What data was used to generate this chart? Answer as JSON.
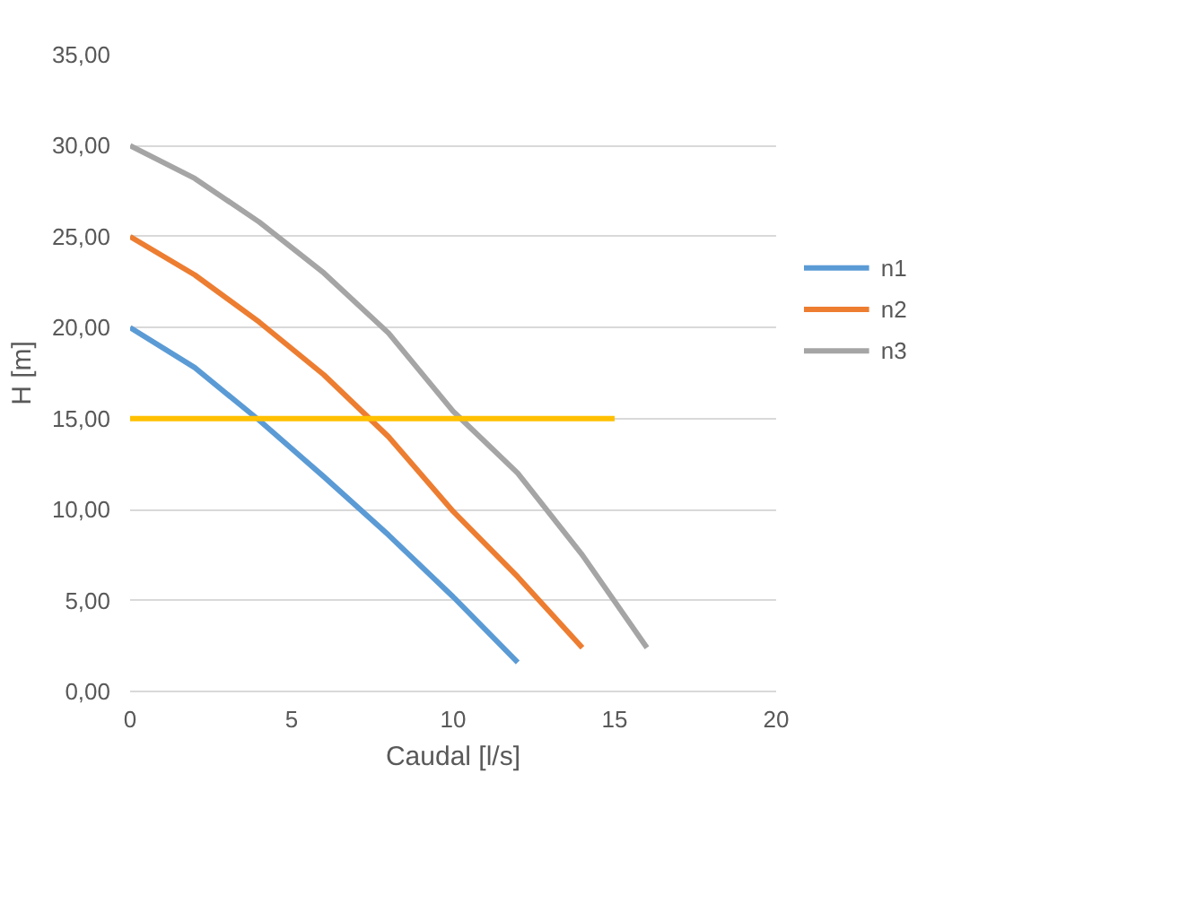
{
  "chart_data": {
    "type": "line",
    "xlabel": "Caudal [l/s]",
    "ylabel": "H [m]",
    "xlim": [
      0,
      20
    ],
    "xticks": [
      0,
      5,
      10,
      15,
      20
    ],
    "ylim": [
      0,
      35
    ],
    "yticks": [
      {
        "value": 0,
        "label": "0,00"
      },
      {
        "value": 5,
        "label": "5,00"
      },
      {
        "value": 10,
        "label": "10,00"
      },
      {
        "value": 15,
        "label": "15,00"
      },
      {
        "value": 20,
        "label": "20,00"
      },
      {
        "value": 25,
        "label": "25,00"
      },
      {
        "value": 30,
        "label": "30,00"
      },
      {
        "value": 35,
        "label": "35,00"
      }
    ],
    "grid": "y",
    "legend": "right",
    "marker": "none",
    "line_style": "solid",
    "series": [
      {
        "name": "n1",
        "color": "#5b9bd5",
        "x": [
          0,
          2,
          4,
          6,
          8,
          10,
          12
        ],
        "values": [
          20,
          17.8,
          14.9,
          11.8,
          8.6,
          5.2,
          1.6
        ]
      },
      {
        "name": "n2",
        "color": "#ed7d31",
        "x": [
          0,
          2,
          4,
          6,
          8,
          10,
          12,
          14
        ],
        "values": [
          25,
          22.9,
          20.3,
          17.4,
          14,
          9.9,
          6.3,
          2.4
        ]
      },
      {
        "name": "n3",
        "color": "#a5a5a5",
        "x": [
          0,
          2,
          4,
          6,
          8,
          10,
          12,
          14,
          16
        ],
        "values": [
          30,
          28.2,
          25.8,
          23,
          19.7,
          15.4,
          12,
          7.5,
          2.4
        ]
      },
      {
        "color": "#ffc000",
        "x": [
          0,
          15
        ],
        "values": [
          15,
          15
        ]
      }
    ]
  }
}
